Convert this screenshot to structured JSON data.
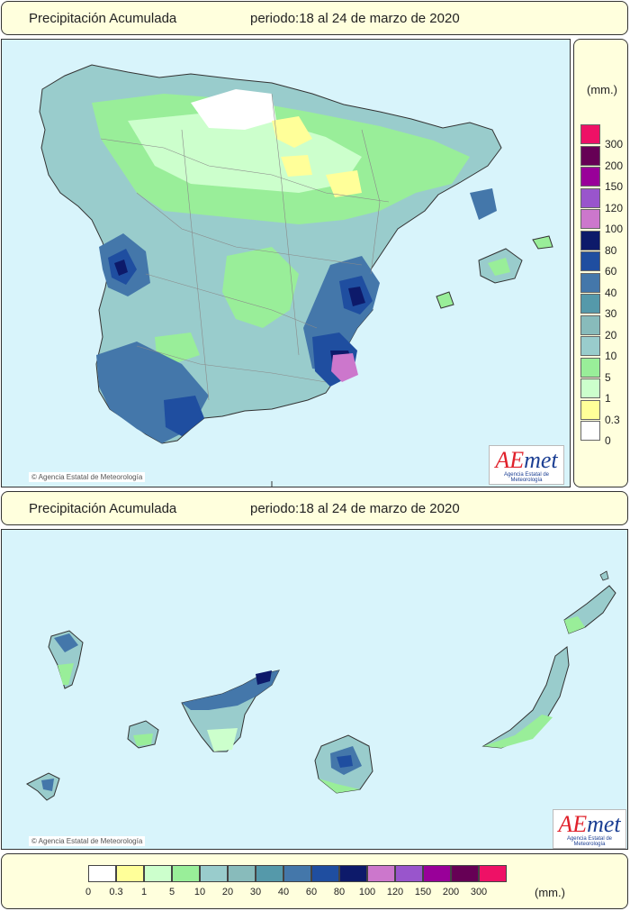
{
  "top": {
    "title": "Precipitación Acumulada",
    "period": "periodo:18 al 24 de marzo de 2020",
    "credit": "© Agencia Estatal de Meteorología"
  },
  "bottom": {
    "title": "Precipitación Acumulada",
    "period": "periodo:18 al 24 de marzo de 2020",
    "credit": "© Agencia Estatal de Meteorología"
  },
  "logo": {
    "brand_ae": "AE",
    "brand_rest": "met",
    "subtitle": "Agencia Estatal de Meteorología"
  },
  "legend": {
    "unit": "(mm.)",
    "classes": [
      {
        "label": "0",
        "color": "#ffffff"
      },
      {
        "label": "0.3",
        "color": "#ffff99"
      },
      {
        "label": "1",
        "color": "#ccffcc"
      },
      {
        "label": "5",
        "color": "#99ee99"
      },
      {
        "label": "10",
        "color": "#99cccc"
      },
      {
        "label": "20",
        "color": "#88bbbb"
      },
      {
        "label": "30",
        "color": "#5599aa"
      },
      {
        "label": "40",
        "color": "#4477aa"
      },
      {
        "label": "60",
        "color": "#1f4ea0"
      },
      {
        "label": "80",
        "color": "#0d1a6a"
      },
      {
        "label": "100",
        "color": "#cc77cc"
      },
      {
        "label": "120",
        "color": "#9955cc"
      },
      {
        "label": "150",
        "color": "#990099"
      },
      {
        "label": "200",
        "color": "#660055"
      },
      {
        "label": "300",
        "color": "#ee1166"
      }
    ]
  }
}
